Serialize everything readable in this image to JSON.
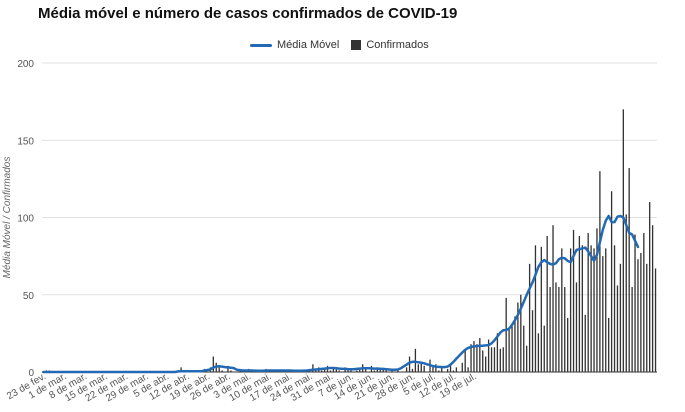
{
  "chart_data": {
    "type": "bar",
    "title": "Média móvel e número de casos confirmados de COVID-19",
    "xlabel": "",
    "ylabel": "Média Móvel / Confirmados",
    "ylim": [
      0,
      200
    ],
    "yticks": [
      0,
      50,
      100,
      150,
      200
    ],
    "grid": true,
    "legend_position": "top-center",
    "x_tick_labels": [
      "23 de fev.",
      "1 de mar.",
      "8 de mar.",
      "15 de mar.",
      "22 de mar.",
      "29 de mar.",
      "5 de abr.",
      "12 de abr.",
      "19 de abr.",
      "26 de abr.",
      "3 de mai.",
      "10 de mai.",
      "17 de mai.",
      "24 de mai.",
      "31 de mai.",
      "7 de jun.",
      "14 de jun.",
      "21 de jun.",
      "28 de jun.",
      "5 de jul.",
      "12 de jul.",
      "19 de jul."
    ],
    "colors": {
      "moving_average": "#2369b3",
      "confirmed": "#333333"
    },
    "series": [
      {
        "name": "Confirmados",
        "kind": "bar",
        "values": [
          0,
          1,
          1,
          0,
          0,
          0,
          0,
          0,
          0,
          0,
          0,
          0,
          0,
          0,
          0,
          0,
          0,
          0,
          0,
          0,
          0,
          0,
          0,
          0,
          0,
          0,
          0,
          0,
          0,
          0,
          0,
          0,
          0,
          0,
          0,
          0,
          0,
          0,
          0,
          0,
          0,
          0,
          0,
          0,
          0,
          0,
          0,
          3,
          0,
          0,
          0,
          0,
          0,
          0,
          1,
          2,
          0,
          3,
          10,
          6,
          4,
          1,
          0,
          4,
          1,
          0,
          0,
          0,
          0,
          0,
          2,
          0,
          1,
          0,
          0,
          1,
          2,
          0,
          1,
          0,
          0,
          1,
          1,
          0,
          1,
          0,
          0,
          0,
          0,
          0,
          0,
          0,
          5,
          2,
          3,
          1,
          2,
          4,
          1,
          2,
          3,
          1,
          0,
          3,
          2,
          1,
          0,
          1,
          2,
          5,
          2,
          0,
          4,
          1,
          3,
          2,
          2,
          1,
          0,
          1,
          0,
          1,
          0,
          0,
          3,
          10,
          2,
          15,
          5,
          6,
          4,
          0,
          8,
          4,
          5,
          1,
          3,
          0,
          2,
          5,
          1,
          3,
          0,
          6,
          14,
          3,
          18,
          20,
          18,
          22,
          14,
          10,
          21,
          16,
          16,
          25,
          15,
          16,
          48,
          28,
          30,
          36,
          45,
          50,
          30,
          17,
          70,
          40,
          82,
          25,
          81,
          30,
          88,
          55,
          95,
          58,
          55,
          80,
          55,
          35,
          80,
          92,
          58,
          88,
          82,
          37,
          90,
          82,
          80,
          93,
          130,
          75,
          80,
          35,
          117,
          82,
          56,
          70,
          170,
          102,
          132,
          55,
          89,
          73,
          77,
          90,
          70,
          110,
          95,
          67
        ],
        "last_value_pairs_note": ""
      },
      {
        "name": "Média Móvel",
        "kind": "line",
        "values": [
          0,
          0,
          0,
          0,
          0,
          0,
          0,
          0,
          0,
          0,
          0,
          0,
          0,
          0,
          0,
          0,
          0,
          0,
          0,
          0,
          0,
          0,
          0,
          0,
          0,
          0,
          0,
          0,
          0,
          0,
          0,
          0,
          0,
          0,
          0,
          0,
          0,
          0,
          0,
          0,
          0,
          0,
          0,
          0,
          0,
          0,
          0.4,
          0.5,
          0.5,
          0.5,
          0.5,
          0.5,
          0.5,
          0.5,
          0.6,
          0.9,
          1.3,
          1.6,
          3.0,
          3.5,
          3.7,
          3.5,
          3.2,
          3.0,
          2.8,
          2.5,
          1.5,
          1.2,
          1.0,
          1.0,
          1.0,
          1.0,
          0.9,
          0.8,
          0.8,
          0.8,
          0.9,
          1.0,
          1.0,
          1.0,
          1.0,
          1.0,
          1.0,
          1.0,
          1.0,
          0.9,
          0.8,
          0.8,
          0.8,
          0.9,
          1.0,
          1.2,
          1.4,
          1.6,
          1.8,
          2.0,
          2.2,
          2.4,
          2.6,
          2.6,
          2.4,
          2.2,
          2.1,
          2.0,
          1.9,
          1.8,
          1.8,
          2.0,
          2.2,
          2.4,
          2.4,
          2.4,
          2.3,
          2.2,
          2.2,
          2.1,
          2.0,
          1.8,
          1.6,
          1.4,
          1.4,
          1.6,
          2.4,
          3.6,
          4.8,
          6.0,
          6.6,
          6.6,
          6.3,
          6.0,
          5.6,
          5.0,
          4.4,
          3.8,
          3.4,
          3.3,
          3.2,
          3.2,
          3.5,
          4.8,
          6.6,
          8.7,
          10.6,
          12.6,
          14.4,
          15.6,
          16.2,
          16.6,
          16.8,
          17.0,
          17.0,
          17.2,
          17.4,
          18.5,
          20.5,
          23.0,
          25.5,
          27.0,
          27.2,
          28.0,
          30.5,
          33.5,
          37.0,
          41.0,
          45.5,
          50.0,
          54.0,
          58.0,
          63.0,
          68.0,
          71.0,
          72.5,
          71.0,
          70.0,
          69.5,
          70.5,
          73.0,
          74.0,
          73.5,
          72.0,
          71.0,
          75.0,
          79.0,
          79.5,
          80.0,
          80.5,
          78.0,
          75.0,
          72.0,
          76.0,
          84.0,
          92.0,
          98.0,
          101.0,
          97.0,
          97.0,
          100.5,
          101.0,
          100.0,
          95.0,
          90.0,
          89.0,
          85.0,
          81.0
        ]
      }
    ]
  }
}
